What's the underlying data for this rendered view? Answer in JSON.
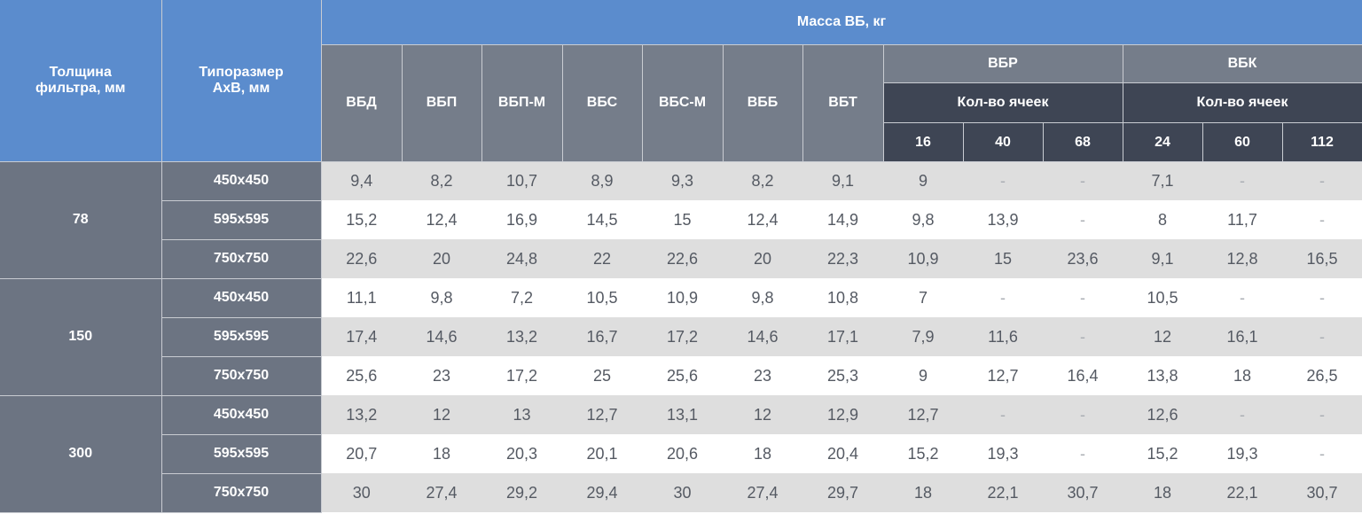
{
  "header": {
    "thickness": "Толщина фильтра, мм",
    "size": "Типоразмер АхВ, мм",
    "mass": "Масса ВБ, кг",
    "models": [
      "ВБД",
      "ВБП",
      "ВБП-М",
      "ВБС",
      "ВБС-М",
      "ВББ",
      "ВБТ"
    ],
    "vbr": {
      "label": "ВБР",
      "sub": "Кол-во ячеек",
      "cells": [
        "16",
        "40",
        "68"
      ]
    },
    "vbk": {
      "label": "ВБК",
      "sub": "Кол-во ячеек",
      "cells": [
        "24",
        "60",
        "112"
      ]
    }
  },
  "groups": [
    {
      "thickness": "78",
      "rows": [
        {
          "size": "450x450",
          "values": [
            "9,4",
            "8,2",
            "10,7",
            "8,9",
            "9,3",
            "8,2",
            "9,1",
            "9",
            "-",
            "-",
            "7,1",
            "-",
            "-"
          ]
        },
        {
          "size": "595x595",
          "values": [
            "15,2",
            "12,4",
            "16,9",
            "14,5",
            "15",
            "12,4",
            "14,9",
            "9,8",
            "13,9",
            "-",
            "8",
            "11,7",
            "-"
          ]
        },
        {
          "size": "750x750",
          "values": [
            "22,6",
            "20",
            "24,8",
            "22",
            "22,6",
            "20",
            "22,3",
            "10,9",
            "15",
            "23,6",
            "9,1",
            "12,8",
            "16,5"
          ]
        }
      ]
    },
    {
      "thickness": "150",
      "rows": [
        {
          "size": "450x450",
          "values": [
            "11,1",
            "9,8",
            "7,2",
            "10,5",
            "10,9",
            "9,8",
            "10,8",
            "7",
            "-",
            "-",
            "10,5",
            "-",
            "-"
          ]
        },
        {
          "size": "595x595",
          "values": [
            "17,4",
            "14,6",
            "13,2",
            "16,7",
            "17,2",
            "14,6",
            "17,1",
            "7,9",
            "11,6",
            "-",
            "12",
            "16,1",
            "-"
          ]
        },
        {
          "size": "750x750",
          "values": [
            "25,6",
            "23",
            "17,2",
            "25",
            "25,6",
            "23",
            "25,3",
            "9",
            "12,7",
            "16,4",
            "13,8",
            "18",
            "26,5"
          ]
        }
      ]
    },
    {
      "thickness": "300",
      "rows": [
        {
          "size": "450x450",
          "values": [
            "13,2",
            "12",
            "13",
            "12,7",
            "13,1",
            "12",
            "12,9",
            "12,7",
            "-",
            "-",
            "12,6",
            "-",
            "-"
          ]
        },
        {
          "size": "595x595",
          "values": [
            "20,7",
            "18",
            "20,3",
            "20,1",
            "20,6",
            "18",
            "20,4",
            "15,2",
            "19,3",
            "-",
            "15,2",
            "19,3",
            "-"
          ]
        },
        {
          "size": "750x750",
          "values": [
            "30",
            "27,4",
            "29,2",
            "29,4",
            "30",
            "27,4",
            "29,7",
            "18",
            "22,1",
            "30,7",
            "18",
            "22,1",
            "30,7"
          ]
        }
      ]
    }
  ]
}
